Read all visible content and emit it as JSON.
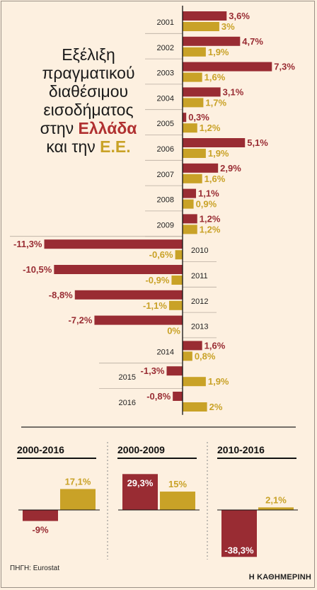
{
  "title": {
    "line1": "Εξέλιξη",
    "line2": "πραγματικού",
    "line3": "διαθέσιμου",
    "line4": "εισοδήματος",
    "line5_prefix": "στην ",
    "line5_highlight": "Ελλάδα",
    "line6_prefix": "και την ",
    "line6_highlight": "Ε.Ε."
  },
  "source": "ΠΗΓΗ: Eurostat",
  "brand": "Η ΚΑΘΗΜΕΡΙΝΗ",
  "colors": {
    "greece": "#992c33",
    "eu": "#c9a227",
    "background": "#fdf0e0"
  },
  "chart_data": [
    {
      "type": "bar",
      "orientation": "horizontal",
      "categories": [
        "2001",
        "2002",
        "2003",
        "2004",
        "2005",
        "2006",
        "2007",
        "2008",
        "2009",
        "2010",
        "2011",
        "2012",
        "2013",
        "2014",
        "2015",
        "2016"
      ],
      "series": [
        {
          "name": "Ελλάδα",
          "values": [
            3.6,
            4.7,
            7.3,
            3.1,
            0.3,
            5.1,
            2.9,
            1.1,
            1.2,
            -11.3,
            -10.5,
            -8.8,
            -7.2,
            1.6,
            -1.3,
            -0.8
          ],
          "labels": [
            "3,6%",
            "4,7%",
            "7,3%",
            "3,1%",
            "0,3%",
            "5,1%",
            "2,9%",
            "1,1%",
            "1,2%",
            "-11,3%",
            "-10,5%",
            "-8,8%",
            "-7,2%",
            "1,6%",
            "-1,3%",
            "-0,8%"
          ]
        },
        {
          "name": "Ε.Ε.",
          "values": [
            3,
            1.9,
            1.6,
            1.7,
            1.2,
            1.9,
            1.6,
            0.9,
            1.2,
            -0.6,
            -0.9,
            -1.1,
            0,
            0.8,
            1.9,
            2
          ],
          "labels": [
            "3%",
            "1,9%",
            "1,6%",
            "1,7%",
            "1,2%",
            "1,9%",
            "1,6%",
            "0,9%",
            "1,2%",
            "-0,6%",
            "-0,9%",
            "-1,1%",
            "0%",
            "0,8%",
            "1,9%",
            "2%"
          ]
        }
      ]
    },
    {
      "type": "bar",
      "title": "2000-2016",
      "series": [
        {
          "name": "Ελλάδα",
          "values": [
            -9
          ],
          "labels": [
            "-9%"
          ]
        },
        {
          "name": "Ε.Ε.",
          "values": [
            17.1
          ],
          "labels": [
            "17,1%"
          ]
        }
      ]
    },
    {
      "type": "bar",
      "title": "2000-2009",
      "series": [
        {
          "name": "Ελλάδα",
          "values": [
            29.3
          ],
          "labels": [
            "29,3%"
          ]
        },
        {
          "name": "Ε.Ε.",
          "values": [
            15
          ],
          "labels": [
            "15%"
          ]
        }
      ]
    },
    {
      "type": "bar",
      "title": "2010-2016",
      "series": [
        {
          "name": "Ελλάδα",
          "values": [
            -38.3
          ],
          "labels": [
            "-38,3%"
          ]
        },
        {
          "name": "Ε.Ε.",
          "values": [
            2.1
          ],
          "labels": [
            "2,1%"
          ]
        }
      ]
    }
  ]
}
